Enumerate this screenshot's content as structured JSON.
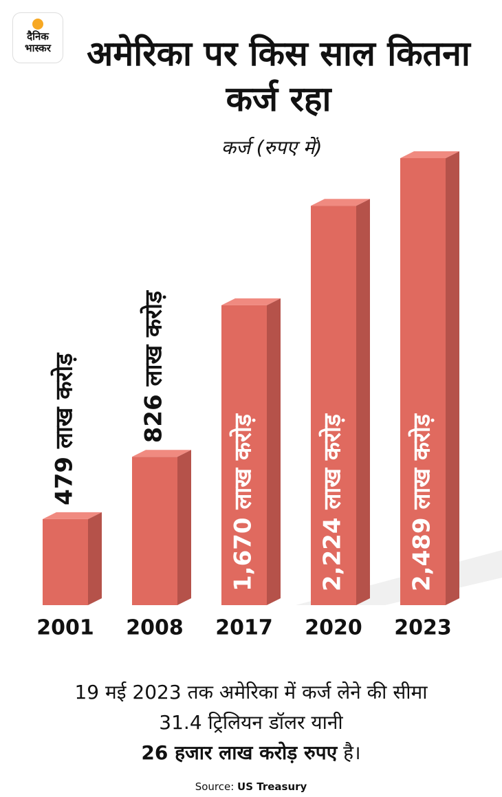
{
  "logo": {
    "line1": "दैनिक",
    "line2": "भास्कर"
  },
  "chart_data": {
    "type": "bar",
    "title": "अमेरिका पर किस साल कितना कर्ज रहा",
    "subtitle": "कर्ज (रुपए में)",
    "categories": [
      "2001",
      "2008",
      "2017",
      "2020",
      "2023"
    ],
    "values": [
      479,
      826,
      1670,
      2224,
      2489
    ],
    "value_labels": [
      "479 लाख करोड़",
      "826 लाख करोड़",
      "1,670 लाख करोड़",
      "2,224 लाख करोड़",
      "2,489 लाख करोड़"
    ],
    "color": "#e06a5f"
  },
  "note": {
    "text": "19 मई 2023 तक अमेरिका में कर्ज लेने की सीमा 31.4 ट्रिलियन डॉलर यानी",
    "bold": "26 हजार लाख करोड़ रुपए",
    "end": "है।"
  },
  "source": {
    "label": "Source:",
    "name": "US Treasury"
  }
}
